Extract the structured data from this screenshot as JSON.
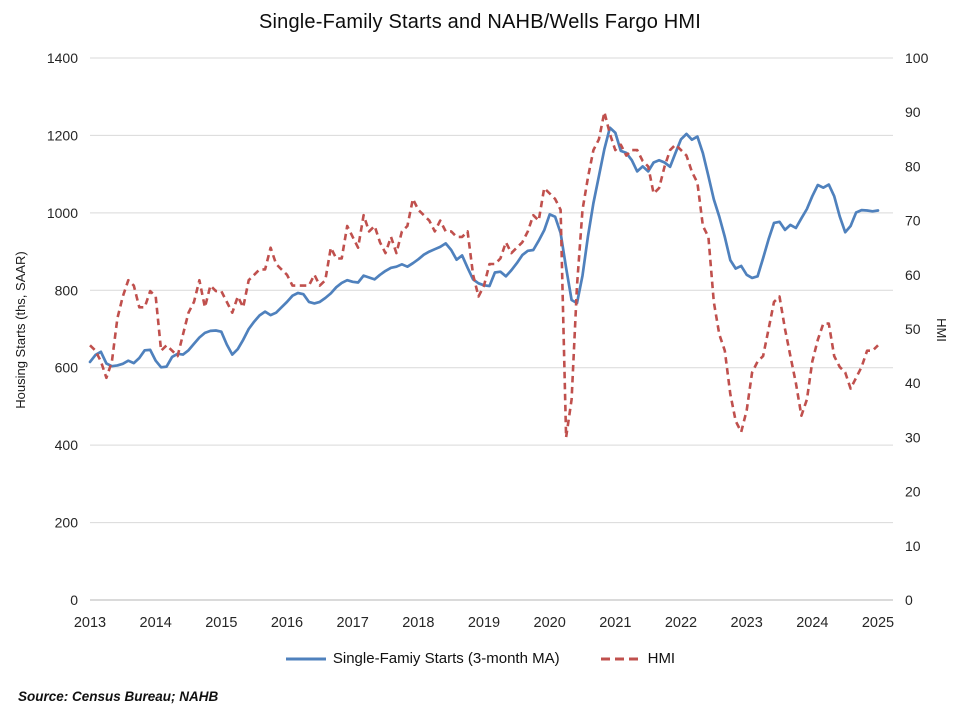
{
  "chart": {
    "title": "Single-Family Starts and NAHB/Wells Fargo HMI",
    "left_axis": {
      "title": "Housing Starts (ths, SAAR)",
      "ticks": [
        "0",
        "200",
        "400",
        "600",
        "800",
        "1000",
        "1200",
        "1400"
      ]
    },
    "right_axis": {
      "title": "HMI",
      "ticks": [
        "0",
        "10",
        "20",
        "30",
        "40",
        "50",
        "60",
        "70",
        "80",
        "90",
        "100"
      ]
    },
    "x_axis": {
      "ticks": [
        "2013",
        "2014",
        "2015",
        "2016",
        "2017",
        "2018",
        "2019",
        "2020",
        "2021",
        "2022",
        "2023",
        "2024",
        "2025"
      ]
    },
    "legend": {
      "starts_label": "Single-Famiy Starts (3-month MA)",
      "hmi_label": "HMI"
    }
  },
  "chart_data": {
    "type": "line",
    "frequency": "monthly",
    "x_start": "2013-01",
    "x_end": "2025-01",
    "x_tick_labels": [
      "2013",
      "2014",
      "2015",
      "2016",
      "2017",
      "2018",
      "2019",
      "2020",
      "2021",
      "2022",
      "2023",
      "2024",
      "2025"
    ],
    "left_ylim": [
      0,
      1400
    ],
    "right_ylim": [
      0,
      100
    ],
    "grid": true,
    "legend_position": "bottom",
    "series": [
      {
        "name": "Single-Famiy Starts (3-month MA)",
        "axis": "left",
        "color": "#4F81BD",
        "line_style": "solid",
        "values": [
          615,
          633,
          641,
          611,
          604,
          606,
          610,
          618,
          612,
          625,
          645,
          646,
          618,
          601,
          603,
          628,
          636,
          634,
          645,
          662,
          678,
          690,
          695,
          696,
          693,
          660,
          634,
          648,
          672,
          700,
          719,
          735,
          745,
          736,
          742,
          756,
          770,
          786,
          793,
          790,
          770,
          766,
          770,
          780,
          792,
          808,
          819,
          826,
          822,
          820,
          838,
          833,
          828,
          840,
          850,
          858,
          861,
          867,
          861,
          870,
          880,
          892,
          900,
          906,
          912,
          921,
          904,
          879,
          890,
          858,
          828,
          818,
          813,
          811,
          846,
          848,
          836,
          852,
          870,
          891,
          902,
          904,
          928,
          955,
          996,
          990,
          948,
          858,
          775,
          767,
          838,
          940,
          1025,
          1095,
          1165,
          1220,
          1207,
          1160,
          1155,
          1136,
          1107,
          1120,
          1107,
          1130,
          1136,
          1130,
          1119,
          1155,
          1190,
          1204,
          1189,
          1197,
          1154,
          1095,
          1035,
          990,
          938,
          878,
          856,
          863,
          840,
          832,
          836,
          883,
          932,
          974,
          977,
          956,
          969,
          961,
          986,
          1010,
          1043,
          1072,
          1065,
          1073,
          1043,
          991,
          950,
          966,
          1001,
          1007,
          1006,
          1004,
          1006
        ]
      },
      {
        "name": "HMI",
        "axis": "right",
        "color": "#C0504D",
        "line_style": "dashed",
        "values": [
          47,
          46,
          44,
          41,
          44,
          52,
          56,
          59,
          58,
          54,
          54,
          57,
          56,
          46,
          47,
          46,
          45,
          49,
          53,
          55,
          59,
          54,
          58,
          57,
          57,
          55,
          53,
          56,
          54,
          59,
          60,
          61,
          61,
          65,
          62,
          61,
          60,
          58,
          58,
          58,
          58,
          60,
          58,
          59,
          65,
          63,
          63,
          69,
          67,
          65,
          71,
          68,
          69,
          66,
          64,
          67,
          64,
          68,
          69,
          74,
          72,
          71,
          70,
          68,
          70,
          68,
          68,
          67,
          67,
          68,
          60,
          56,
          58,
          62,
          62,
          63,
          66,
          64,
          65,
          66,
          68,
          71,
          70,
          76,
          75,
          74,
          72,
          30,
          37,
          58,
          72,
          78,
          83,
          85,
          90,
          86,
          83,
          84,
          82,
          83,
          83,
          81,
          80,
          75,
          76,
          80,
          83,
          84,
          83,
          82,
          79,
          77,
          69,
          67,
          55,
          49,
          46,
          38,
          33,
          31,
          35,
          42,
          44,
          45,
          50,
          55,
          56,
          50,
          45,
          40,
          34,
          37,
          44,
          48,
          51,
          51,
          45,
          43,
          42,
          39,
          41,
          43,
          46,
          46,
          47
        ]
      }
    ]
  },
  "footer": {
    "source": "Source: Census Bureau; NAHB"
  },
  "colors": {
    "starts_line": "#4F81BD",
    "hmi_line": "#C0504D",
    "gridline": "#D9D9D9",
    "axis_line": "#C3C3C3",
    "tick_text": "#262626"
  }
}
